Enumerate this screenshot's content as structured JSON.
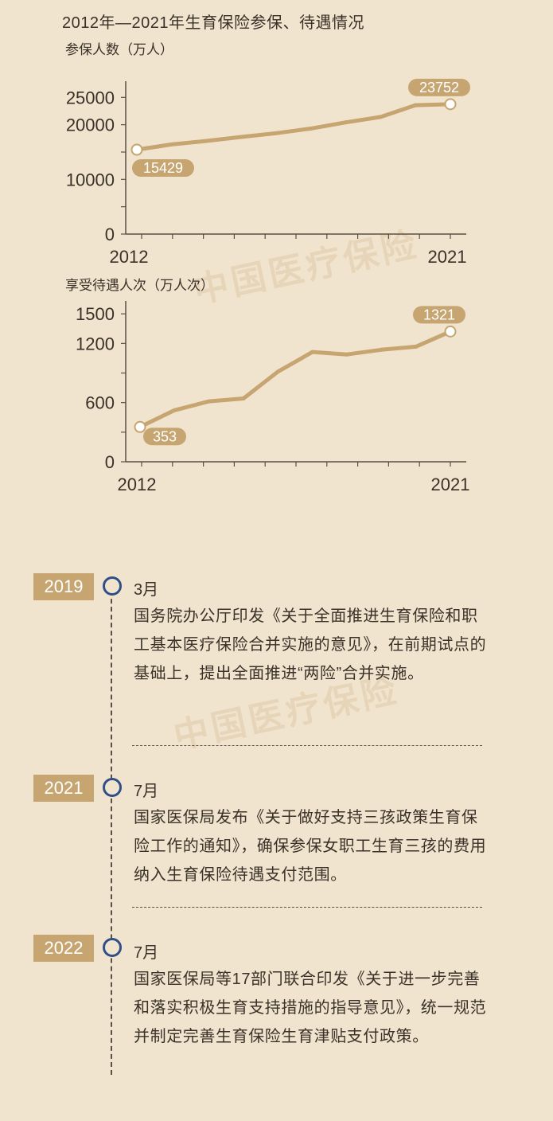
{
  "title": "2012年—2021年生育保险参保、待遇情况",
  "watermark": "中国医疗保险",
  "colors": {
    "line": "#c6a571",
    "label_bg": "#c6a571",
    "axis": "#5a4f45",
    "timeline_circle": "#2f4f86"
  },
  "chart_data": [
    {
      "type": "line",
      "ylabel": "参保人数（万人）",
      "x": [
        2012,
        2013,
        2014,
        2015,
        2016,
        2017,
        2018,
        2019,
        2020,
        2021
      ],
      "x_tick_labels": [
        "2012",
        "2021"
      ],
      "y_ticks": [
        "0",
        "10000",
        "20000",
        "25000"
      ],
      "ylim": [
        0,
        26500
      ],
      "series": [
        {
          "values": [
            15429,
            16392,
            17039,
            17771,
            18451,
            19300,
            20435,
            21417,
            23567,
            23752
          ]
        }
      ],
      "data_labels": [
        {
          "x": 2012,
          "text": "15429",
          "placement": "below"
        },
        {
          "x": 2021,
          "text": "23752",
          "placement": "above"
        }
      ]
    },
    {
      "type": "line",
      "ylabel": "享受待遇人次（万人次）",
      "x": [
        2012,
        2013,
        2014,
        2015,
        2016,
        2017,
        2018,
        2019,
        2020,
        2021
      ],
      "x_tick_labels": [
        "2012",
        "2021"
      ],
      "y_ticks": [
        "0",
        "600",
        "1200",
        "1500"
      ],
      "ylim": [
        0,
        1550
      ],
      "series": [
        {
          "values": [
            353,
            522,
            613,
            642,
            914,
            1113,
            1088,
            1136,
            1167,
            1321
          ]
        }
      ],
      "data_labels": [
        {
          "x": 2012,
          "text": "353",
          "placement": "below-right"
        },
        {
          "x": 2021,
          "text": "1321",
          "placement": "above"
        }
      ]
    }
  ],
  "timeline": [
    {
      "year": "2019",
      "month": "3月",
      "text": "国务院办公厅印发《关于全面推进生育保险和职工基本医疗保险合并实施的意见》，在前期试点的基础上，提出全面推进“两险”合并实施。"
    },
    {
      "year": "2021",
      "month": "7月",
      "text": "国家医保局发布《关于做好支持三孩政策生育保险工作的通知》，确保参保女职工生育三孩的费用纳入生育保险待遇支付范围。"
    },
    {
      "year": "2022",
      "month": "7月",
      "text": "国家医保局等17部门联合印发《关于进一步完善和落实积极生育支持措施的指导意见》，统一规范并制定完善生育保险生育津贴支付政策。"
    }
  ]
}
